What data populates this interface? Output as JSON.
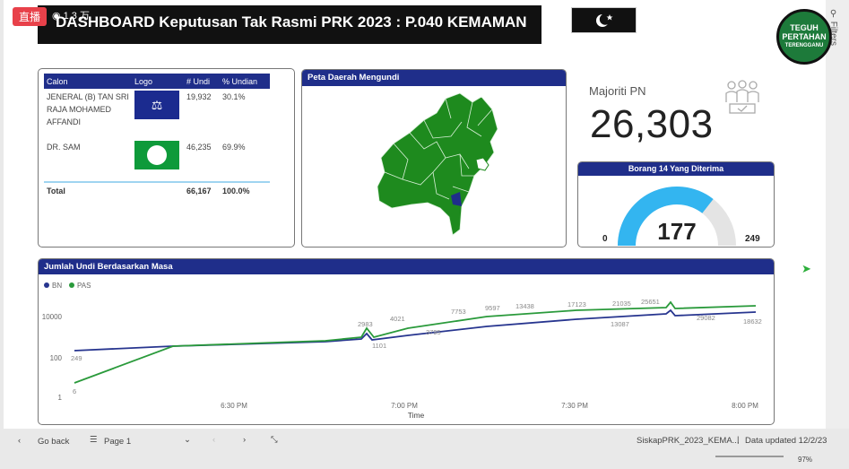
{
  "overlay": {
    "live_badge": "直播",
    "viewers": "1.3 万"
  },
  "header": {
    "title": "DASHBOARD Keputusan Tak Rasmi PRK 2023 : P.040 KEMAMAN"
  },
  "logo": {
    "line1": "TEGUH",
    "line2": "PERTAHAN",
    "line3": "TERENGGANU"
  },
  "filters_label": "Filters",
  "results_table": {
    "headers": [
      "Calon",
      "Logo",
      "# Undi",
      "% Undian"
    ],
    "rows": [
      {
        "name": "JENERAL (B) TAN SRI RAJA MOHAMED AFFANDI",
        "logo": "bn-logo-icon",
        "votes": "19,932",
        "pct": "30.1%"
      },
      {
        "name": "DR. SAM",
        "logo": "pas-logo-icon",
        "votes": "46,235",
        "pct": "69.9%"
      }
    ],
    "total": {
      "label": "Total",
      "votes": "66,167",
      "pct": "100.0%"
    }
  },
  "map": {
    "title": "Peta Daerah Mengundi"
  },
  "majority": {
    "label": "Majoriti PN",
    "value": "26,303"
  },
  "gauge": {
    "title": "Borang 14 Yang Diterima",
    "value": "177",
    "min": "0",
    "max": "249",
    "fraction": 0.711
  },
  "colors": {
    "bn": "#27358f",
    "pas": "#2a9a3b",
    "header_blue": "#1f2e8a",
    "gauge": "#33b5f0"
  },
  "chart_data": {
    "type": "line",
    "title": "Jumlah Undi Berdasarkan Masa",
    "xlabel": "Time",
    "ylabel": "",
    "yscale": "log",
    "x_ticks": [
      "6:30 PM",
      "7:00 PM",
      "7:30 PM",
      "8:00 PM"
    ],
    "y_ticks": [
      "1",
      "100",
      "10000"
    ],
    "legend": [
      "BN",
      "PAS"
    ],
    "series": [
      {
        "name": "BN",
        "labels": [
          "249",
          "1101",
          "3795",
          "13087",
          "18632"
        ]
      },
      {
        "name": "PAS",
        "labels": [
          "6",
          "2983",
          "4021",
          "7753",
          "9597",
          "13438",
          "17123",
          "21035",
          "25651",
          "29082"
        ]
      }
    ]
  },
  "footer": {
    "back": "Go back",
    "page": "Page 1",
    "file": "SiskapPRK_2023_KEMA...",
    "updated": "Data updated 12/2/23",
    "zoom": "97%"
  }
}
